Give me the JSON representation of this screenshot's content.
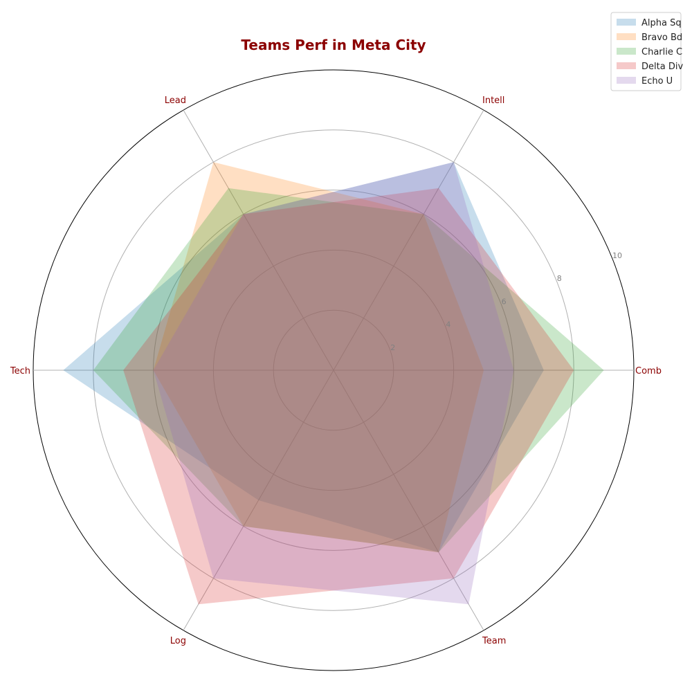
{
  "chart_data": {
    "type": "radar",
    "title": "Teams Perf in Meta City",
    "axes": [
      "Comb",
      "Intell",
      "Lead",
      "Tech",
      "Log",
      "Team"
    ],
    "series": [
      {
        "name": "Alpha Sq",
        "values": [
          7,
          8,
          6,
          9,
          5,
          7
        ],
        "color": "#1f77b4"
      },
      {
        "name": "Bravo Bd",
        "values": [
          5,
          6,
          8,
          6,
          6,
          7
        ],
        "color": "#ff7f0e"
      },
      {
        "name": "Charlie C",
        "values": [
          9,
          6,
          7,
          8,
          6,
          7
        ],
        "color": "#2ca02c"
      },
      {
        "name": "Delta Div",
        "values": [
          8,
          7,
          6,
          7,
          9,
          8
        ],
        "color": "#d62728"
      },
      {
        "name": "Echo U",
        "values": [
          6,
          8,
          6,
          6,
          8,
          9
        ],
        "color": "#9467bd"
      }
    ],
    "rlim": [
      0,
      10
    ],
    "rticks": [
      "2",
      "4",
      "6",
      "8",
      "10"
    ],
    "grid": true,
    "legend_position": "top-right",
    "title_color": "#8b0000",
    "axis_label_color": "#8b0000"
  }
}
